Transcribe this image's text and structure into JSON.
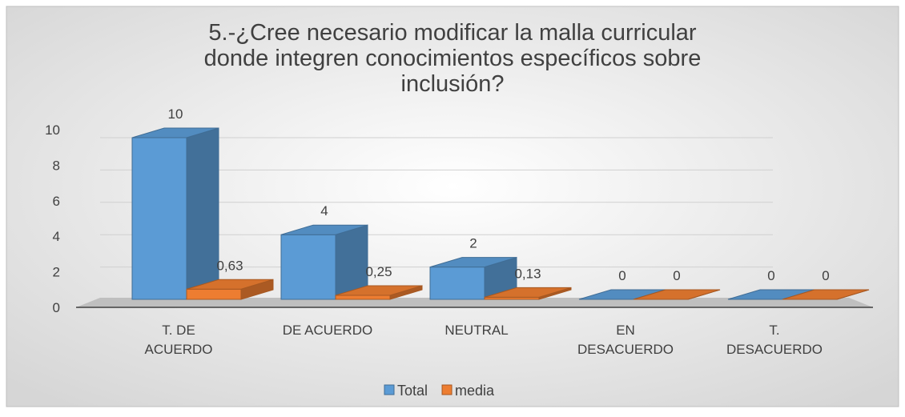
{
  "chart_data": {
    "type": "bar3d",
    "title": "5.-¿Cree necesario modificar la malla curricular donde integren conocimientos específicos sobre inclusión?",
    "categories": [
      "T. DE ACUERDO",
      "DE ACUERDO",
      "NEUTRAL",
      "EN DESACUERDO",
      "T. DESACUERDO"
    ],
    "series": [
      {
        "name": "Total",
        "color": "#5b9bd5",
        "values": [
          10,
          4,
          2,
          0,
          0
        ]
      },
      {
        "name": "media",
        "color": "#ed7d31",
        "values": [
          0.63,
          0.25,
          0.13,
          0,
          0
        ],
        "value_labels": [
          "0,63",
          "0,25",
          "0,13",
          "0",
          "0"
        ]
      }
    ],
    "ylim": [
      0,
      10
    ],
    "yticks": [
      0,
      2,
      4,
      6,
      8,
      10
    ],
    "grid": true,
    "legend": "bottom"
  }
}
